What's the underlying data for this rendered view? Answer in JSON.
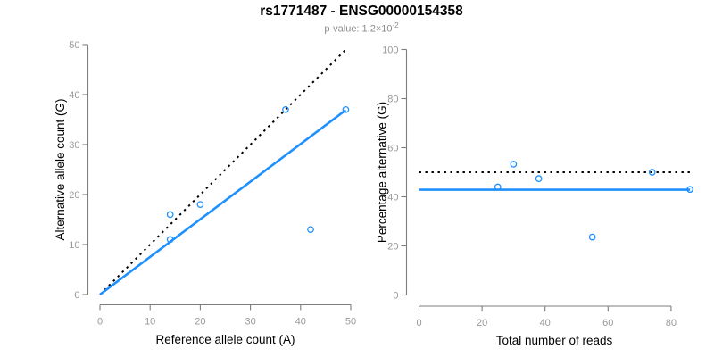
{
  "title": "rs1771487 - ENSG00000154358",
  "subtitle": {
    "text": "p-value: 1.2×10",
    "exponent": "-2"
  },
  "colors": {
    "accent_blue": "#1E90FF",
    "dotted_black": "#000000",
    "axis_gray": "#7d7d7d",
    "tick_label_gray": "#999999",
    "subtitle_gray": "#8c8c8c"
  },
  "chart_data": [
    {
      "type": "scatter",
      "name": "allele-counts-plot",
      "xlabel": "Reference allele count (A)",
      "ylabel": "Alternative allele count (G)",
      "xlim": [
        0,
        50
      ],
      "ylim": [
        0,
        50
      ],
      "xticks": [
        0,
        10,
        20,
        30,
        40,
        50
      ],
      "yticks": [
        0,
        10,
        20,
        30,
        40,
        50
      ],
      "grid": false,
      "points": [
        [
          14,
          16
        ],
        [
          14,
          11
        ],
        [
          20,
          18
        ],
        [
          37,
          37
        ],
        [
          42,
          13
        ],
        [
          49,
          37
        ]
      ],
      "lines": [
        {
          "name": "identity-line",
          "style": "dotted",
          "color": "#000000",
          "from": [
            0,
            0
          ],
          "to": [
            49,
            49
          ]
        },
        {
          "name": "fit-line",
          "style": "solid",
          "color": "#1E90FF",
          "from": [
            0,
            0
          ],
          "to": [
            49,
            36.9
          ]
        }
      ]
    },
    {
      "type": "scatter",
      "name": "percentage-plot",
      "xlabel": "Total number of reads",
      "ylabel": "Percentage alternative (G)",
      "xlim": [
        0,
        86
      ],
      "ylim": [
        0,
        100
      ],
      "xticks": [
        0,
        20,
        40,
        60,
        80
      ],
      "yticks": [
        0,
        20,
        40,
        60,
        80,
        100
      ],
      "grid": false,
      "points": [
        [
          25,
          44
        ],
        [
          30,
          53.3
        ],
        [
          38,
          47.4
        ],
        [
          55,
          23.6
        ],
        [
          74,
          50
        ],
        [
          86,
          43
        ]
      ],
      "lines": [
        {
          "name": "fifty-percent-line",
          "style": "dotted",
          "color": "#000000",
          "from": [
            0,
            50
          ],
          "to": [
            86,
            50
          ]
        },
        {
          "name": "mean-percentage-line",
          "style": "solid",
          "color": "#1E90FF",
          "from": [
            0,
            42.9
          ],
          "to": [
            86,
            42.9
          ]
        }
      ]
    }
  ]
}
